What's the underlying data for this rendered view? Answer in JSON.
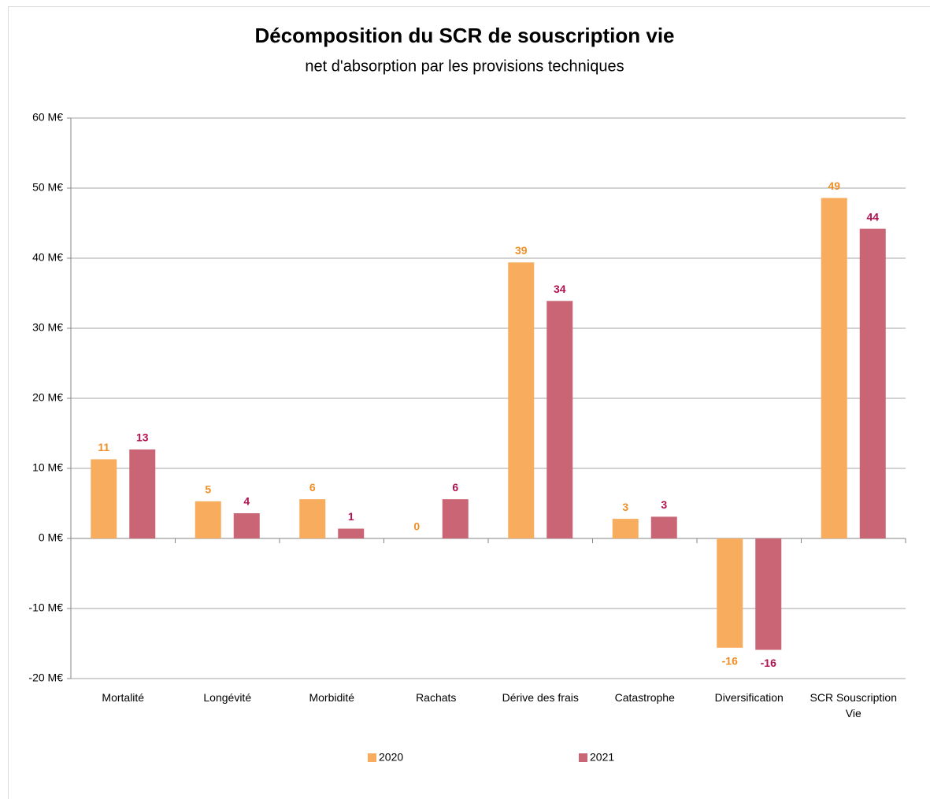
{
  "chart_data": {
    "type": "bar",
    "title": "Décomposition du SCR de souscription vie",
    "subtitle": "net d'absorption par les provisions techniques",
    "categories": [
      "Mortalité",
      "Longévité",
      "Morbidité",
      "Rachats",
      "Dérive des frais",
      "Catastrophe",
      "Diversification",
      "SCR Souscription Vie"
    ],
    "series": [
      {
        "name": "2020",
        "color": "#f8ac5e",
        "label_color": "#ef8f28",
        "values": [
          11.3,
          5.3,
          5.6,
          0,
          39.4,
          2.8,
          -15.6,
          48.6
        ],
        "value_labels": [
          "11",
          "5",
          "6",
          "0",
          "39",
          "3",
          "-16",
          "49"
        ]
      },
      {
        "name": "2021",
        "color": "#c96574",
        "label_color": "#b0124f",
        "values": [
          12.7,
          3.6,
          1.4,
          5.6,
          33.9,
          3.1,
          -15.9,
          44.2
        ],
        "value_labels": [
          "13",
          "4",
          "1",
          "6",
          "34",
          "3",
          "-16",
          "44"
        ]
      }
    ],
    "ylim": [
      -20,
      60
    ],
    "yticks": [
      {
        "value": -20,
        "label": "-20 M€"
      },
      {
        "value": -10,
        "label": "-10 M€"
      },
      {
        "value": 0,
        "label": "0 M€"
      },
      {
        "value": 10,
        "label": "10 M€"
      },
      {
        "value": 20,
        "label": "20 M€"
      },
      {
        "value": 30,
        "label": "30 M€"
      },
      {
        "value": 40,
        "label": "40 M€"
      },
      {
        "value": 50,
        "label": "50 M€"
      },
      {
        "value": 60,
        "label": "60 M€"
      }
    ],
    "grid": true,
    "legend": "bottom"
  }
}
